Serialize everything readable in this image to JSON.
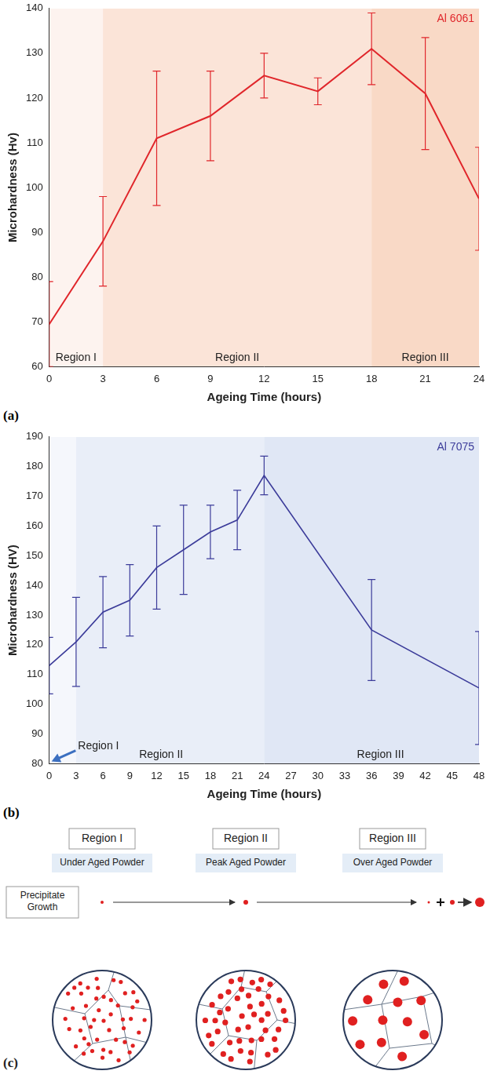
{
  "chart_data": [
    {
      "type": "line",
      "panel": "(a)",
      "x_label": "Ageing Time (hours)",
      "y_label": "Microhardness (Hv)",
      "xlim": [
        0,
        24
      ],
      "xticks": [
        0,
        3,
        6,
        9,
        12,
        15,
        18,
        21,
        24
      ],
      "ylim": [
        60,
        140
      ],
      "yticks": [
        60,
        70,
        80,
        90,
        100,
        110,
        120,
        130,
        140
      ],
      "grid": false,
      "legend": "upper right",
      "series": [
        {
          "name": "Al 6061",
          "color": "#e0262b",
          "x": [
            0,
            3,
            6,
            9,
            12,
            15,
            18,
            21,
            24
          ],
          "values": [
            69.5,
            88,
            111,
            116,
            125,
            121.5,
            131,
            121,
            97.5
          ],
          "errors": [
            9.5,
            10,
            15,
            10,
            5,
            3,
            8,
            12.5,
            11.5
          ]
        }
      ],
      "regions": [
        {
          "label": "Region I",
          "start": 0,
          "end": 3,
          "color": "#fdf3ef",
          "label_x": 1.5,
          "label_y": 62
        },
        {
          "label": "Region II",
          "start": 3,
          "end": 18,
          "color": "#fbe4d8",
          "label_x": 10.5,
          "label_y": 62
        },
        {
          "label": "Region III",
          "start": 18,
          "end": 24,
          "color": "#f9d9c6",
          "label_x": 21,
          "label_y": 62
        }
      ]
    },
    {
      "type": "line",
      "panel": "(b)",
      "x_label": "Ageing Time (hours)",
      "y_label": "Microhardness (HV)",
      "xlim": [
        0,
        48
      ],
      "xticks": [
        0,
        3,
        6,
        9,
        12,
        15,
        18,
        21,
        24,
        27,
        30,
        33,
        36,
        39,
        42,
        45,
        48
      ],
      "ylim": [
        80,
        190
      ],
      "yticks": [
        80,
        90,
        100,
        110,
        120,
        130,
        140,
        150,
        160,
        170,
        180,
        190
      ],
      "grid": false,
      "legend": "upper right",
      "series": [
        {
          "name": "Al 7075",
          "color": "#3c3c9a",
          "x": [
            0,
            3,
            6,
            9,
            12,
            15,
            18,
            21,
            24,
            36,
            48
          ],
          "values": [
            113,
            121,
            131,
            135,
            146,
            152,
            158,
            162,
            177,
            125,
            105.5
          ],
          "errors": [
            9.5,
            15,
            12,
            12,
            14,
            15,
            9,
            10,
            6.5,
            17,
            19
          ]
        }
      ],
      "regions": [
        {
          "label": "Region I",
          "start": 0,
          "end": 3,
          "color": "#f5f7fc",
          "label_x": 5.5,
          "label_y": 86
        },
        {
          "label": "Region II",
          "start": 3,
          "end": 24,
          "color": "#e9eef8",
          "label_x": 12.5,
          "label_y": 83
        },
        {
          "label": "Region III",
          "start": 24,
          "end": 48,
          "color": "#e0e7f5",
          "label_x": 37,
          "label_y": 83
        }
      ]
    }
  ],
  "diagram": {
    "panel": "(c)",
    "row_label": "Precipitate Growth",
    "columns": [
      {
        "title": "Region I",
        "subtitle": "Under Aged Powder"
      },
      {
        "title": "Region II",
        "subtitle": "Peak Aged Powder"
      },
      {
        "title": "Region III",
        "subtitle": "Over Aged Powder"
      }
    ]
  }
}
